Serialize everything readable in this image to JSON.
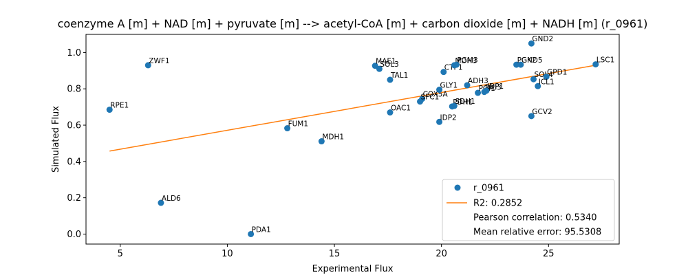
{
  "chart_data": {
    "type": "scatter",
    "title": "coenzyme A [m] + NAD [m] + pyruvate [m] --> acetyl-CoA [m] + carbon dioxide [m] + NADH [m] (r_0961)",
    "xlabel": "Experimental Flux",
    "ylabel": "Simulated Flux",
    "xlim": [
      3.4,
      28.3
    ],
    "ylim": [
      -0.055,
      1.1
    ],
    "xticks": [
      5,
      10,
      15,
      20,
      25
    ],
    "yticks": [
      0.0,
      0.2,
      0.4,
      0.6,
      0.8,
      1.0
    ],
    "ytick_labels": [
      "0.0",
      "0.2",
      "0.4",
      "0.6",
      "0.8",
      "1.0"
    ],
    "grid": false,
    "legend_position": "lower-right",
    "series": [
      {
        "name": "r_0961",
        "color": "#1f77b4",
        "points": [
          {
            "label": "ZWF1",
            "x": 6.3,
            "y": 0.93
          },
          {
            "label": "RPE1",
            "x": 4.5,
            "y": 0.685
          },
          {
            "label": "ALD6",
            "x": 6.9,
            "y": 0.172
          },
          {
            "label": "PDA1",
            "x": 11.1,
            "y": 0.0
          },
          {
            "label": "FUM1",
            "x": 12.8,
            "y": 0.583
          },
          {
            "label": "MDH1",
            "x": 14.4,
            "y": 0.511
          },
          {
            "label": "MAE1",
            "x": 16.9,
            "y": 0.927
          },
          {
            "label": "SOL3",
            "x": 17.1,
            "y": 0.91
          },
          {
            "label": "TAL1",
            "x": 17.6,
            "y": 0.85
          },
          {
            "label": "OAC1",
            "x": 17.6,
            "y": 0.67
          },
          {
            "label": "COX5A",
            "x": 19.1,
            "y": 0.745
          },
          {
            "label": "SFC1",
            "x": 19.0,
            "y": 0.73
          },
          {
            "label": "IDP2",
            "x": 19.9,
            "y": 0.618
          },
          {
            "label": "GLY1",
            "x": 19.9,
            "y": 0.795
          },
          {
            "label": "CTP1",
            "x": 20.1,
            "y": 0.893
          },
          {
            "label": "MDH3",
            "x": 20.6,
            "y": 0.93
          },
          {
            "label": "PGM3",
            "x": 20.7,
            "y": 0.933
          },
          {
            "label": "ADH3",
            "x": 21.2,
            "y": 0.82
          },
          {
            "label": "PDH1",
            "x": 20.5,
            "y": 0.703
          },
          {
            "label": "SDH1",
            "x": 20.6,
            "y": 0.706
          },
          {
            "label": "PGI1",
            "x": 21.7,
            "y": 0.778
          },
          {
            "label": "RKI3",
            "x": 22.0,
            "y": 0.783
          },
          {
            "label": "IDP1",
            "x": 22.1,
            "y": 0.79
          },
          {
            "label": "PGK2",
            "x": 23.5,
            "y": 0.933
          },
          {
            "label": "GND5",
            "x": 23.7,
            "y": 0.933
          },
          {
            "label": "GND2",
            "x": 24.2,
            "y": 1.05
          },
          {
            "label": "SOL4",
            "x": 24.3,
            "y": 0.853
          },
          {
            "label": "GPD1",
            "x": 24.9,
            "y": 0.867
          },
          {
            "label": "ICL1",
            "x": 24.5,
            "y": 0.815
          },
          {
            "label": "GCV2",
            "x": 24.2,
            "y": 0.65
          },
          {
            "label": "LSC1",
            "x": 27.2,
            "y": 0.935
          }
        ]
      }
    ],
    "fit_line": {
      "name": "R2: 0.2852",
      "color": "#ff7f0e",
      "x": [
        4.5,
        27.2
      ],
      "y": [
        0.457,
        0.93
      ]
    },
    "legend_extra": [
      "Pearson correlation: 0.5340",
      "Mean relative error: 95.5308"
    ]
  }
}
